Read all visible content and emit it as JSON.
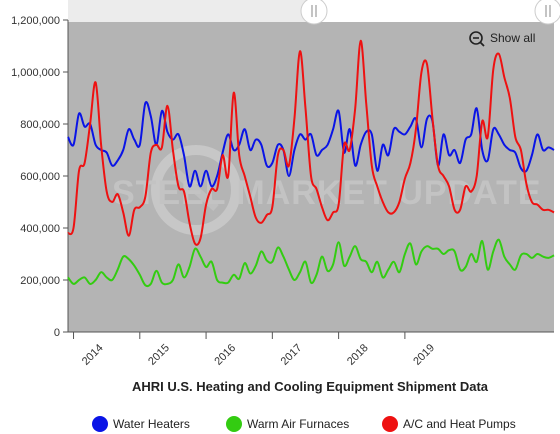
{
  "chart_data": {
    "type": "line",
    "title": "AHRI U.S. Heating and Cooling Equipment Shipment Data",
    "xlabel": "",
    "ylabel": "",
    "ylim": [
      0,
      1200000
    ],
    "y_ticks": [
      "0",
      "200,000",
      "400,000",
      "600,000",
      "800,000",
      "1,000,000",
      "1,200,000"
    ],
    "y_tick_values": [
      0,
      200000,
      400000,
      600000,
      800000,
      1000000,
      1200000
    ],
    "x_start": "2013-12",
    "x_ticks": [
      "2014",
      "2015",
      "2016",
      "2017",
      "2018",
      "2019"
    ],
    "grid": false,
    "legend_position": "bottom",
    "zoom_button": "Show all",
    "watermark": "STEEL MARKET UPDATE",
    "colors": {
      "plot_background": "#b4b4b4",
      "water_heaters": "#0a14e6",
      "warm_air_furnaces": "#33cc11",
      "ac_heat_pumps": "#ee1111"
    },
    "series": [
      {
        "name": "Water Heaters",
        "color": "#0a14e6",
        "values": [
          750000,
          720000,
          840000,
          790000,
          800000,
          720000,
          700000,
          690000,
          640000,
          660000,
          700000,
          780000,
          740000,
          720000,
          880000,
          830000,
          720000,
          850000,
          770000,
          740000,
          760000,
          680000,
          560000,
          620000,
          560000,
          620000,
          560000,
          600000,
          690000,
          760000,
          700000,
          720000,
          780000,
          700000,
          740000,
          720000,
          640000,
          650000,
          720000,
          700000,
          600000,
          700000,
          760000,
          740000,
          760000,
          680000,
          700000,
          720000,
          780000,
          850000,
          690000,
          780000,
          640000,
          720000,
          770000,
          760000,
          620000,
          720000,
          680000,
          780000,
          770000,
          760000,
          790000,
          820000,
          710000,
          820000,
          810000,
          640000,
          760000,
          680000,
          700000,
          650000,
          740000,
          760000,
          860000,
          700000,
          660000,
          780000,
          760000,
          720000,
          700000,
          690000,
          630000,
          620000,
          680000,
          760000,
          700000,
          710000,
          700000
        ]
      },
      {
        "name": "Warm Air Furnaces",
        "color": "#33cc11",
        "values": [
          210000,
          185000,
          200000,
          210000,
          185000,
          200000,
          230000,
          210000,
          200000,
          240000,
          290000,
          280000,
          255000,
          220000,
          180000,
          185000,
          235000,
          190000,
          185000,
          200000,
          260000,
          210000,
          250000,
          320000,
          290000,
          250000,
          270000,
          200000,
          190000,
          190000,
          220000,
          205000,
          265000,
          225000,
          255000,
          310000,
          275000,
          270000,
          325000,
          290000,
          240000,
          200000,
          230000,
          270000,
          190000,
          220000,
          290000,
          235000,
          260000,
          345000,
          255000,
          290000,
          330000,
          280000,
          270000,
          230000,
          270000,
          210000,
          240000,
          270000,
          230000,
          300000,
          340000,
          260000,
          310000,
          330000,
          320000,
          320000,
          300000,
          315000,
          310000,
          240000,
          250000,
          300000,
          270000,
          350000,
          240000,
          310000,
          355000,
          290000,
          260000,
          240000,
          295000,
          300000,
          285000,
          300000,
          290000,
          285000,
          295000
        ]
      },
      {
        "name": "A/C and Heat Pumps",
        "color": "#ee1111",
        "values": [
          380000,
          400000,
          620000,
          650000,
          800000,
          960000,
          720000,
          540000,
          500000,
          530000,
          460000,
          370000,
          470000,
          480000,
          520000,
          690000,
          720000,
          710000,
          870000,
          700000,
          560000,
          540000,
          420000,
          340000,
          360000,
          490000,
          550000,
          550000,
          680000,
          600000,
          920000,
          680000,
          600000,
          520000,
          440000,
          420000,
          450000,
          480000,
          680000,
          700000,
          640000,
          820000,
          1080000,
          860000,
          600000,
          550000,
          480000,
          430000,
          460000,
          490000,
          720000,
          700000,
          860000,
          1120000,
          880000,
          640000,
          560000,
          500000,
          460000,
          460000,
          500000,
          590000,
          650000,
          780000,
          1000000,
          1030000,
          820000,
          640000,
          600000,
          560000,
          470000,
          470000,
          560000,
          540000,
          600000,
          810000,
          750000,
          1010000,
          1070000,
          980000,
          900000,
          750000,
          700000,
          570000,
          500000,
          490000,
          470000,
          470000,
          460000
        ]
      }
    ]
  }
}
